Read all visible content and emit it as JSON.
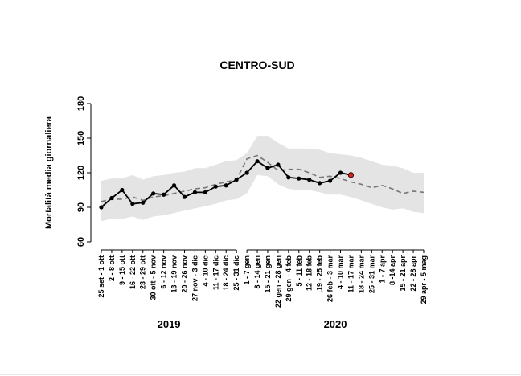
{
  "chart_data": {
    "type": "line",
    "title": "CENTRO-SUD",
    "y_label": "Mortalità media giornaliera",
    "ylim": [
      60,
      180
    ],
    "yticks": [
      60,
      90,
      120,
      150,
      180
    ],
    "groups": [
      {
        "label": "2019",
        "categories": [
          "25 set - 1 ott",
          "2 - 8 ott",
          "9 - 15 ott",
          "16 - 22 ott",
          "23 - 29 ott",
          "30 ott - 5 nov",
          "6 - 12 nov",
          "13 - 19 nov",
          "20 - 26 nov",
          "27 nov - 3 dic",
          "4 - 10 dic",
          "11 - 17 dic",
          "18 - 24 dic",
          "25 - 31 dic"
        ]
      },
      {
        "label": "2020",
        "categories": [
          "1 - 7 gen",
          "8 - 14 gen",
          "15 - 21 gen",
          "22 gen - 28 gen",
          "29 gen - 4 feb",
          "5 - 11 feb",
          "12 - 18 feb",
          ",19 - 25 feb",
          "26 feb - 3 mar",
          "4 - 10 mar",
          "11 - 17 mar",
          "18 - 24 mar",
          "25 - 31 mar",
          "1 - 7 apr",
          "8 -14 apr",
          "15 - 21 apr",
          "22 - 28 apr",
          "29 apr - 5 mag"
        ]
      }
    ],
    "band": {
      "color": "#e4e4e4",
      "upper": [
        113,
        115,
        115,
        118,
        114,
        117,
        118,
        120,
        121,
        124,
        124,
        127,
        130,
        131,
        137,
        152,
        152,
        146,
        141,
        141,
        141,
        140,
        137,
        136,
        135,
        133,
        130,
        127,
        126,
        124,
        120,
        120
      ],
      "lower": [
        78,
        80,
        80,
        82,
        79,
        82,
        83,
        85,
        87,
        89,
        91,
        93,
        96,
        97,
        102,
        118,
        117,
        110,
        106,
        105,
        105,
        103,
        101,
        101,
        99,
        96,
        93,
        90,
        88,
        89,
        86,
        85
      ]
    },
    "expected": {
      "color": "#777777",
      "dashed": true,
      "values": [
        95,
        97,
        97,
        99,
        96,
        99,
        100,
        102,
        104,
        106,
        107,
        110,
        112,
        114,
        132,
        135,
        129,
        122,
        123,
        123,
        120,
        116,
        117,
        115,
        112,
        110,
        107,
        109,
        106,
        102,
        104,
        103
      ]
    },
    "observed": {
      "color": "#000000",
      "last_color": "#e0201b",
      "values": [
        90,
        98,
        105,
        93,
        94,
        102,
        101,
        109,
        99,
        103,
        103,
        108,
        109,
        114,
        120,
        130,
        124,
        127,
        116,
        115,
        114,
        111,
        113,
        120,
        118,
        null,
        null,
        null,
        null,
        null,
        null,
        null
      ]
    }
  }
}
